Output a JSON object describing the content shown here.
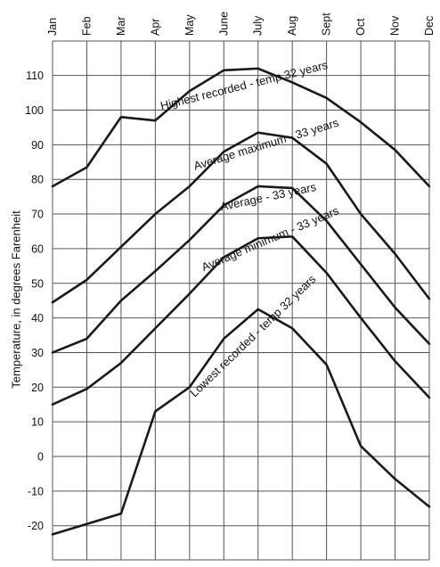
{
  "chart_data": {
    "type": "line",
    "categories": [
      "Jan",
      "Feb",
      "Mar",
      "Apr",
      "May",
      "June",
      "July",
      "Aug",
      "Sept",
      "Oct",
      "Nov",
      "Dec"
    ],
    "ylabel": "Temperature, in degrees Farenheit",
    "ylim": [
      -30,
      120
    ],
    "yticks": [
      -20,
      -10,
      0,
      10,
      20,
      30,
      40,
      50,
      60,
      70,
      80,
      90,
      100,
      110
    ],
    "grid": true,
    "series": [
      {
        "name": "Highest recorded - temp 32 years",
        "values": [
          78,
          83.5,
          98,
          97,
          105.5,
          111.5,
          112,
          108,
          103.5,
          96.5,
          88.5,
          78
        ]
      },
      {
        "name": "Average maximum - 33 years",
        "values": [
          44.5,
          51,
          60.5,
          70,
          78,
          88,
          93.5,
          92,
          84.5,
          70,
          58.5,
          45.5
        ]
      },
      {
        "name": "Average - 33 years",
        "values": [
          30,
          34,
          45,
          53.5,
          62.5,
          72.5,
          78,
          77.5,
          68,
          55.5,
          43,
          32.5
        ]
      },
      {
        "name": "Average minimum - 33 years",
        "values": [
          15,
          19.5,
          27,
          37,
          47,
          57.5,
          63,
          63.5,
          53,
          40,
          27.5,
          17
        ]
      },
      {
        "name": "Lowest recorded - temp 32 years",
        "values": [
          -22.5,
          -19.5,
          -16.5,
          13,
          20,
          34,
          42.5,
          37,
          26.5,
          3,
          -6.5,
          -14.5
        ]
      }
    ]
  }
}
